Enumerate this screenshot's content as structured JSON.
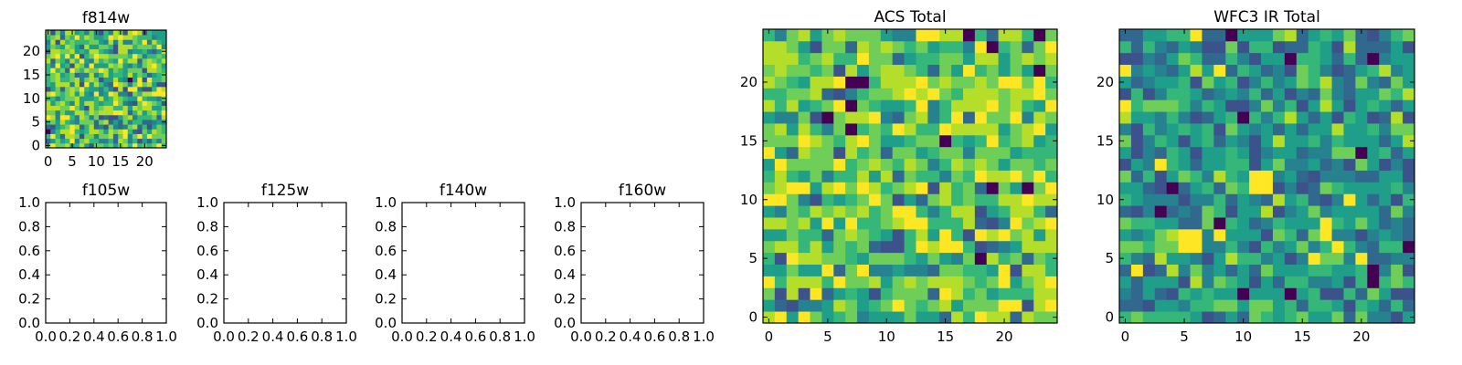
{
  "figure": {
    "colormap": "viridis"
  },
  "chart_data": [
    {
      "type": "heatmap",
      "title": "f814w",
      "xlabel": "",
      "ylabel": "",
      "grid_shape": [
        25,
        25
      ],
      "x_range": [
        -0.5,
        24.5
      ],
      "y_range": [
        -0.5,
        24.5
      ],
      "x_ticks": [
        0,
        5,
        10,
        15,
        20
      ],
      "y_ticks": [
        0,
        5,
        10,
        15,
        20
      ],
      "origin": "lower",
      "note_values": "random-looking noise image; mostly green/yellow-green values with scattered dark purple pixels"
    },
    {
      "type": "empty",
      "title": "f105w",
      "x_range": [
        0.0,
        1.0
      ],
      "y_range": [
        0.0,
        1.0
      ],
      "x_ticks": [
        "0.0",
        "0.2",
        "0.4",
        "0.6",
        "0.8",
        "1.0"
      ],
      "y_ticks": [
        "0.0",
        "0.2",
        "0.4",
        "0.6",
        "0.8",
        "1.0"
      ]
    },
    {
      "type": "empty",
      "title": "f125w",
      "x_range": [
        0.0,
        1.0
      ],
      "y_range": [
        0.0,
        1.0
      ],
      "x_ticks": [
        "0.0",
        "0.2",
        "0.4",
        "0.6",
        "0.8",
        "1.0"
      ],
      "y_ticks": [
        "0.0",
        "0.2",
        "0.4",
        "0.6",
        "0.8",
        "1.0"
      ]
    },
    {
      "type": "empty",
      "title": "f140w",
      "x_range": [
        0.0,
        1.0
      ],
      "y_range": [
        0.0,
        1.0
      ],
      "x_ticks": [
        "0.0",
        "0.2",
        "0.4",
        "0.6",
        "0.8",
        "1.0"
      ],
      "y_ticks": [
        "0.0",
        "0.2",
        "0.4",
        "0.6",
        "0.8",
        "1.0"
      ]
    },
    {
      "type": "empty",
      "title": "f160w",
      "x_range": [
        0.0,
        1.0
      ],
      "y_range": [
        0.0,
        1.0
      ],
      "x_ticks": [
        "0.0",
        "0.2",
        "0.4",
        "0.6",
        "0.8",
        "1.0"
      ],
      "y_ticks": [
        "0.0",
        "0.2",
        "0.4",
        "0.6",
        "0.8",
        "1.0"
      ]
    },
    {
      "type": "heatmap",
      "title": "ACS Total",
      "grid_shape": [
        25,
        25
      ],
      "x_range": [
        -0.5,
        24.5
      ],
      "y_range": [
        -0.5,
        24.5
      ],
      "x_ticks": [
        0,
        5,
        10,
        15,
        20
      ],
      "y_ticks": [
        0,
        5,
        10,
        15,
        20
      ],
      "origin": "lower",
      "note_values": "noise image dominated by green/yellow; dark purple pixels near (7,20),(5,17),(7,16),(19,23),(23,24),(23,21),(19,11),(22,11); bright yellow cluster near (11-13,8-9)"
    },
    {
      "type": "heatmap",
      "title": "WFC3 IR Total",
      "grid_shape": [
        25,
        25
      ],
      "x_range": [
        -0.5,
        24.5
      ],
      "y_range": [
        -0.5,
        24.5
      ],
      "x_ticks": [
        0,
        5,
        10,
        15,
        20
      ],
      "y_ticks": [
        0,
        5,
        10,
        15,
        20
      ],
      "origin": "lower",
      "note_values": "noise image mostly teal/green; bright yellow blobs near (11-12,11-12), (5-6,6-7), (17,7-8); dark purple pixels near (9,24),(14,22),(21,22),(10,17),(20,14),(4,11),(3,9),(8,8),(24,6),(21,3-4),(10,2),(14,2)"
    }
  ]
}
